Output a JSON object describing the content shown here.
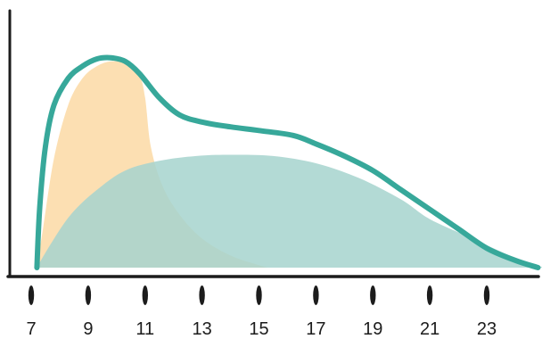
{
  "chart_data": {
    "type": "area",
    "title": "",
    "xlabel": "",
    "ylabel": "",
    "xlim": [
      6.9,
      25.1
    ],
    "ylim": [
      0,
      1.0
    ],
    "x_ticks": [
      7,
      9,
      11,
      13,
      15,
      17,
      19,
      21,
      23
    ],
    "grid": false,
    "legend": "none",
    "series": [
      {
        "color": "#fcdcaa",
        "opacity": 0.9,
        "style": "filled",
        "points": [
          [
            7.2,
            0
          ],
          [
            7.4,
            0.15
          ],
          [
            7.8,
            0.45
          ],
          [
            8.3,
            0.67
          ],
          [
            8.8,
            0.78
          ],
          [
            9.3,
            0.83
          ],
          [
            9.8,
            0.85
          ],
          [
            10.3,
            0.84
          ],
          [
            10.8,
            0.79
          ],
          [
            11.0,
            0.7
          ],
          [
            11.2,
            0.5
          ],
          [
            11.6,
            0.34
          ],
          [
            12.2,
            0.22
          ],
          [
            13.0,
            0.12
          ],
          [
            14.0,
            0.05
          ],
          [
            15.0,
            0.01
          ],
          [
            15.3,
            0
          ]
        ]
      },
      {
        "color": "#a6d3ce",
        "opacity": 0.85,
        "style": "filled",
        "points": [
          [
            7.2,
            0
          ],
          [
            7.7,
            0.1
          ],
          [
            8.4,
            0.22
          ],
          [
            9.3,
            0.32
          ],
          [
            10.3,
            0.4
          ],
          [
            11.5,
            0.44
          ],
          [
            12.8,
            0.46
          ],
          [
            14.0,
            0.465
          ],
          [
            15.5,
            0.46
          ],
          [
            17.0,
            0.43
          ],
          [
            18.5,
            0.37
          ],
          [
            20.0,
            0.28
          ],
          [
            21.0,
            0.2
          ],
          [
            22.5,
            0.12
          ],
          [
            23.8,
            0.05
          ],
          [
            24.6,
            0.015
          ],
          [
            25.0,
            0
          ]
        ]
      },
      {
        "color": "#37a89a",
        "style": "outline",
        "points": [
          [
            7.2,
            0
          ],
          [
            7.3,
            0.25
          ],
          [
            7.5,
            0.5
          ],
          [
            7.8,
            0.67
          ],
          [
            8.3,
            0.78
          ],
          [
            8.8,
            0.83
          ],
          [
            9.3,
            0.86
          ],
          [
            9.8,
            0.865
          ],
          [
            10.3,
            0.85
          ],
          [
            10.8,
            0.8
          ],
          [
            11.5,
            0.7
          ],
          [
            12.2,
            0.63
          ],
          [
            13.0,
            0.6
          ],
          [
            14.0,
            0.58
          ],
          [
            15.0,
            0.565
          ],
          [
            16.2,
            0.545
          ],
          [
            17.0,
            0.51
          ],
          [
            18.0,
            0.46
          ],
          [
            19.0,
            0.4
          ],
          [
            20.0,
            0.32
          ],
          [
            21.0,
            0.24
          ],
          [
            22.0,
            0.16
          ],
          [
            23.0,
            0.08
          ],
          [
            24.0,
            0.03
          ],
          [
            24.8,
            0
          ]
        ]
      }
    ]
  }
}
